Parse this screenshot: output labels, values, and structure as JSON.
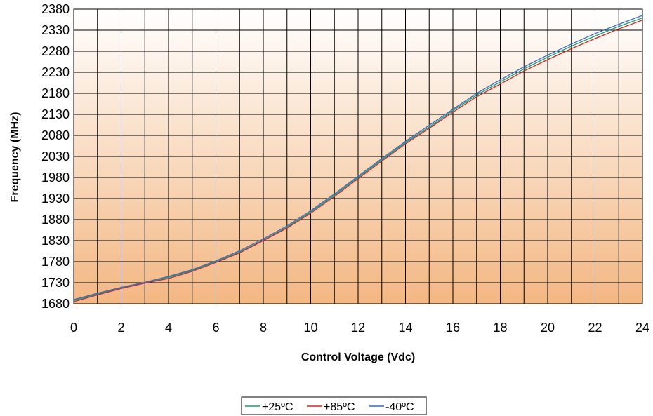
{
  "chart_data": {
    "type": "line",
    "xlabel": "Control Voltage (Vdc)",
    "ylabel": "Frequency  (MHz)",
    "xlim": [
      0,
      24
    ],
    "ylim": [
      1680,
      2380
    ],
    "x_ticks": [
      "0",
      "2",
      "4",
      "6",
      "8",
      "10",
      "12",
      "14",
      "16",
      "18",
      "20",
      "22",
      "24"
    ],
    "y_ticks": [
      "1680",
      "1730",
      "1780",
      "1830",
      "1880",
      "1930",
      "1980",
      "2030",
      "2080",
      "2130",
      "2180",
      "2230",
      "2280",
      "2330",
      "2380"
    ],
    "grid": true,
    "legend_position": "bottom",
    "x": [
      0,
      1,
      2,
      3,
      4,
      5,
      6,
      7,
      8,
      9,
      10,
      11,
      12,
      13,
      14,
      15,
      16,
      17,
      18,
      19,
      20,
      21,
      22,
      23,
      24
    ],
    "series": [
      {
        "name": "+25ºC",
        "color": "#1a9e6e",
        "values": [
          1688,
          1703,
          1717,
          1730,
          1743,
          1759,
          1780,
          1803,
          1831,
          1862,
          1898,
          1938,
          1980,
          2022,
          2063,
          2100,
          2139,
          2176,
          2207,
          2238,
          2266,
          2292,
          2316,
          2339,
          2359
        ]
      },
      {
        "name": "+85ºC",
        "color": "#e0201c",
        "values": [
          1685,
          1701,
          1716,
          1729,
          1740,
          1757,
          1778,
          1801,
          1830,
          1860,
          1895,
          1935,
          1977,
          2019,
          2060,
          2097,
          2135,
          2172,
          2202,
          2233,
          2260,
          2286,
          2310,
          2333,
          2354
        ]
      },
      {
        "name": "-40ºC",
        "color": "#2c6fd6",
        "values": [
          1690,
          1705,
          1719,
          1731,
          1745,
          1761,
          1782,
          1806,
          1834,
          1865,
          1901,
          1941,
          1983,
          2025,
          2066,
          2104,
          2142,
          2180,
          2212,
          2243,
          2271,
          2297,
          2322,
          2344,
          2365
        ]
      }
    ]
  }
}
